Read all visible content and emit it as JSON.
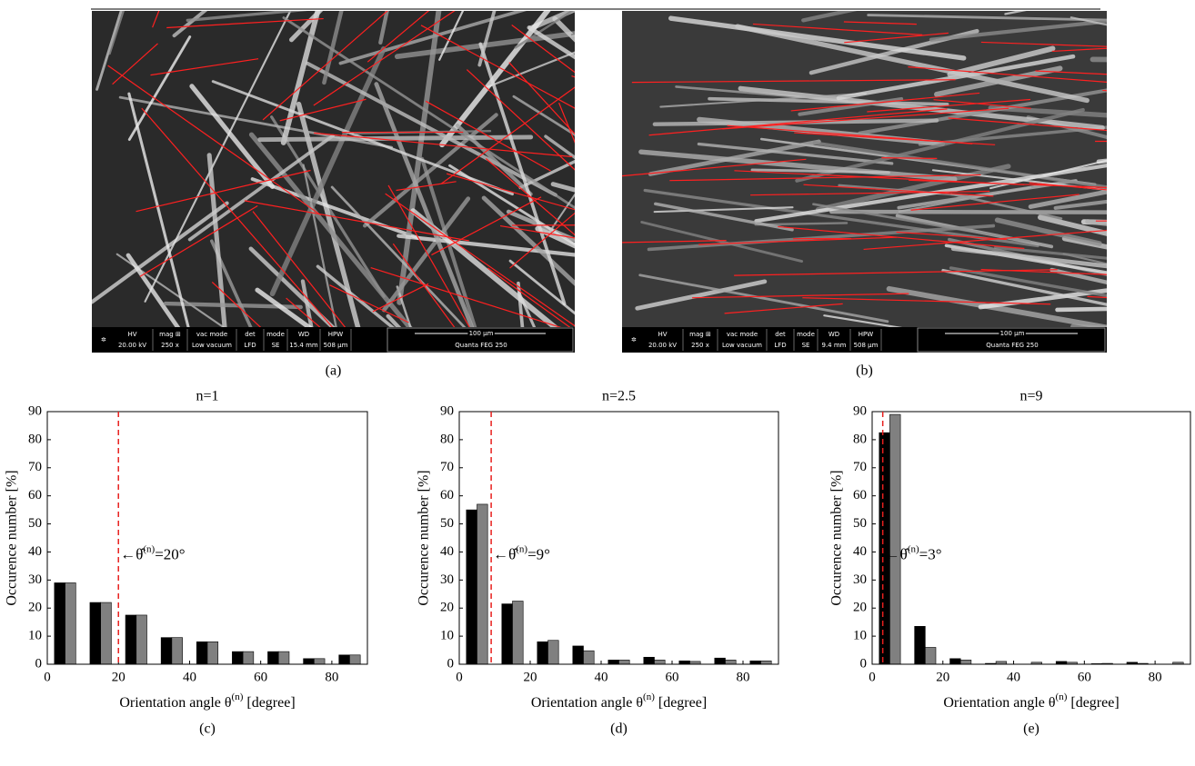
{
  "images": [
    {
      "caption": "(a)",
      "info": [
        {
          "top": "HV",
          "bottom": "20.00 kV"
        },
        {
          "top": "mag ⊞",
          "bottom": "250 x"
        },
        {
          "top": "vac mode",
          "bottom": "Low vacuum"
        },
        {
          "top": "det",
          "bottom": "LFD"
        },
        {
          "top": "mode",
          "bottom": "SE"
        },
        {
          "top": "WD",
          "bottom": "15.4 mm"
        },
        {
          "top": "HPW",
          "bottom": "508 μm"
        }
      ],
      "scale": "100 μm",
      "instrument": "Quanta FEG 250"
    },
    {
      "caption": "(b)",
      "info": [
        {
          "top": "HV",
          "bottom": "20.00 kV"
        },
        {
          "top": "mag ⊞",
          "bottom": "250 x"
        },
        {
          "top": "vac mode",
          "bottom": "Low vacuum"
        },
        {
          "top": "det",
          "bottom": "LFD"
        },
        {
          "top": "mode",
          "bottom": "SE"
        },
        {
          "top": "WD",
          "bottom": "9.4 mm"
        },
        {
          "top": "HPW",
          "bottom": "508 μm"
        }
      ],
      "scale": "100 μm",
      "instrument": "Quanta FEG 250"
    }
  ],
  "chart_data": [
    {
      "type": "bar",
      "title": "n=1",
      "caption": "(c)",
      "ylabel": "Occurence number [%]",
      "xlabel": "Orientation angle θ",
      "xlabel_sup": "(n)",
      "xlabel_suffix": " [degree]",
      "annotation": "←θ̂",
      "annotation_sup": "(n)",
      "annotation_suffix": "=20°",
      "reference_line": 20,
      "reference_color": "#e8201e",
      "x": [
        5,
        15,
        25,
        35,
        45,
        55,
        65,
        75,
        85
      ],
      "series": [
        {
          "color": "#000000",
          "values": [
            29,
            22,
            17.5,
            9.5,
            8,
            4.5,
            4.5,
            2,
            3.3
          ]
        },
        {
          "color": "#808080",
          "values": [
            29,
            22,
            17.5,
            9.5,
            8,
            4.5,
            4.5,
            2,
            3.3
          ]
        }
      ],
      "xlim": [
        0,
        90
      ],
      "xticks": [
        0,
        20,
        40,
        60,
        80
      ],
      "ylim": [
        0,
        90
      ],
      "yticks": [
        0,
        10,
        20,
        30,
        40,
        50,
        60,
        70,
        80,
        90
      ]
    },
    {
      "type": "bar",
      "title": "n=2.5",
      "caption": "(d)",
      "ylabel": "Occurence number [%]",
      "xlabel": "Orientation angle θ",
      "xlabel_sup": "(n)",
      "xlabel_suffix": " [degree]",
      "annotation": "←θ̂",
      "annotation_sup": "(n)",
      "annotation_suffix": "=9°",
      "reference_line": 9,
      "reference_color": "#e8201e",
      "x": [
        5,
        15,
        25,
        35,
        45,
        55,
        65,
        75,
        85
      ],
      "series": [
        {
          "color": "#000000",
          "values": [
            55,
            21.5,
            8,
            6.5,
            1.5,
            2.5,
            1.2,
            2.2,
            1.2
          ]
        },
        {
          "color": "#808080",
          "values": [
            57,
            22.5,
            8.5,
            4.8,
            1.5,
            1.5,
            1,
            1.5,
            1.2
          ]
        }
      ],
      "xlim": [
        0,
        90
      ],
      "xticks": [
        0,
        20,
        40,
        60,
        80
      ],
      "ylim": [
        0,
        90
      ],
      "yticks": [
        0,
        10,
        20,
        30,
        40,
        50,
        60,
        70,
        80,
        90
      ]
    },
    {
      "type": "bar",
      "title": "n=9",
      "caption": "(e)",
      "ylabel": "Occurence number [%]",
      "xlabel": "Orientation angle θ",
      "xlabel_sup": "(n)",
      "xlabel_suffix": " [degree]",
      "annotation": "←θ̂",
      "annotation_sup": "(n)",
      "annotation_suffix": "=3°",
      "reference_line": 3,
      "reference_color": "#e8201e",
      "x": [
        5,
        15,
        25,
        35,
        45,
        55,
        65,
        75,
        85
      ],
      "series": [
        {
          "color": "#000000",
          "values": [
            82.5,
            13.5,
            2,
            0.3,
            0,
            1,
            0.2,
            0.7,
            0
          ]
        },
        {
          "color": "#808080",
          "values": [
            89,
            6,
            1.5,
            1,
            0.7,
            0.7,
            0.3,
            0.3,
            0.7
          ]
        }
      ],
      "xlim": [
        0,
        90
      ],
      "xticks": [
        0,
        20,
        40,
        60,
        80
      ],
      "ylim": [
        0,
        90
      ],
      "yticks": [
        0,
        10,
        20,
        30,
        40,
        50,
        60,
        70,
        80,
        90
      ]
    }
  ]
}
